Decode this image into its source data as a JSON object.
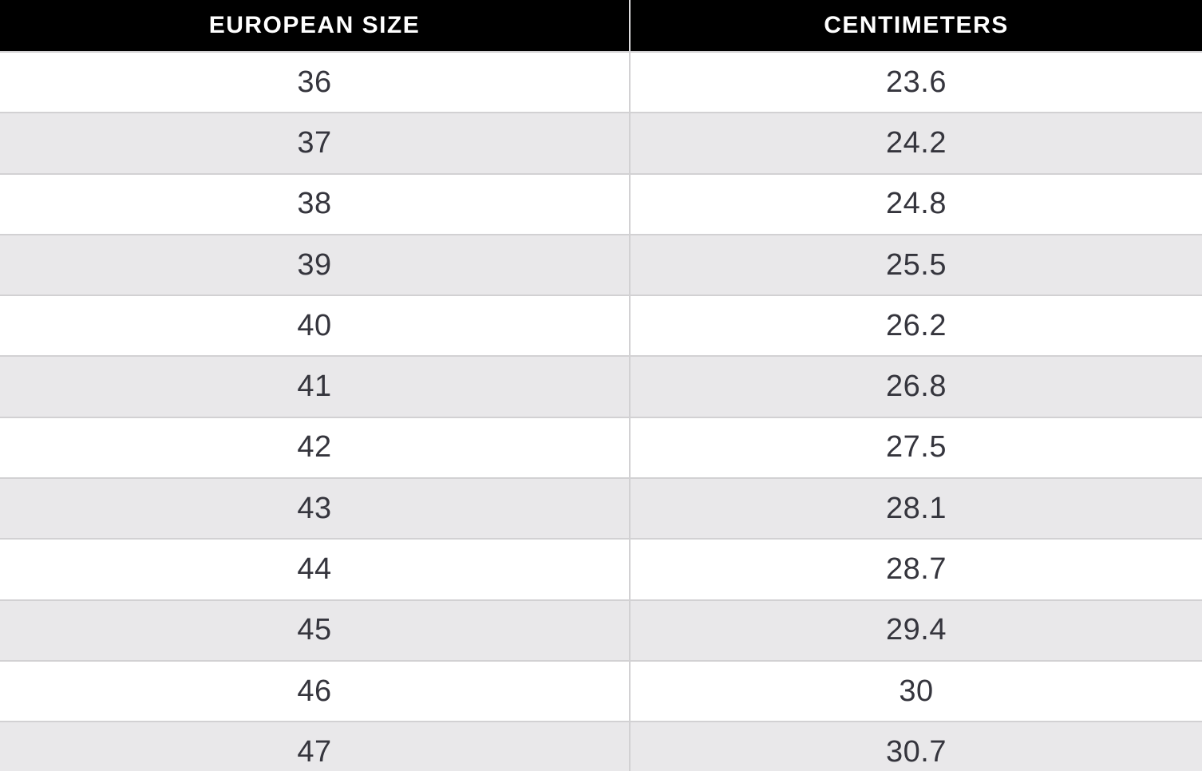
{
  "chart_data": {
    "type": "table",
    "title": "",
    "columns": [
      {
        "label": "EUROPEAN SIZE"
      },
      {
        "label": "CENTIMETERS"
      }
    ],
    "rows": [
      {
        "european_size": "36",
        "centimeters": "23.6"
      },
      {
        "european_size": "37",
        "centimeters": "24.2"
      },
      {
        "european_size": "38",
        "centimeters": "24.8"
      },
      {
        "european_size": "39",
        "centimeters": "25.5"
      },
      {
        "european_size": "40",
        "centimeters": "26.2"
      },
      {
        "european_size": "41",
        "centimeters": "26.8"
      },
      {
        "european_size": "42",
        "centimeters": "27.5"
      },
      {
        "european_size": "43",
        "centimeters": "28.1"
      },
      {
        "european_size": "44",
        "centimeters": "28.7"
      },
      {
        "european_size": "45",
        "centimeters": "29.4"
      },
      {
        "european_size": "46",
        "centimeters": "30"
      },
      {
        "european_size": "47",
        "centimeters": "30.7"
      }
    ]
  },
  "colors": {
    "header_bg": "#000000",
    "header_text": "#ffffff",
    "row_bg": "#ffffff",
    "row_alt_bg": "#e9e8ea",
    "body_text": "#35353d",
    "border": "#d2d1d3"
  }
}
